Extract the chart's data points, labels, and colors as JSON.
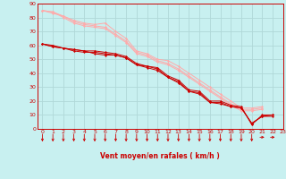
{
  "bg_color": "#c8f0f0",
  "grid_color": "#b0d8d8",
  "line_color_dark": "#cc0000",
  "line_color_light": "#ffaaaa",
  "xlabel": "Vent moyen/en rafales ( km/h )",
  "xlim": [
    -0.5,
    23
  ],
  "ylim": [
    0,
    90
  ],
  "yticks": [
    0,
    10,
    20,
    30,
    40,
    50,
    60,
    70,
    80,
    90
  ],
  "xticks": [
    0,
    1,
    2,
    3,
    4,
    5,
    6,
    7,
    8,
    9,
    10,
    11,
    12,
    13,
    14,
    15,
    16,
    17,
    18,
    19,
    20,
    21,
    22,
    23
  ],
  "series_dark": [
    [
      61,
      60,
      58,
      57,
      56,
      56,
      55,
      54,
      52,
      47,
      45,
      44,
      38,
      35,
      28,
      27,
      20,
      20,
      17,
      16,
      3,
      10,
      10
    ],
    [
      61,
      59,
      58,
      57,
      56,
      54,
      53,
      53,
      51,
      46,
      45,
      43,
      37,
      34,
      27,
      26,
      19,
      19,
      16,
      15,
      4,
      9,
      10
    ],
    [
      61,
      59,
      58,
      56,
      55,
      55,
      54,
      53,
      51,
      46,
      44,
      42,
      37,
      33,
      27,
      25,
      19,
      18,
      16,
      15,
      4,
      9,
      9
    ]
  ],
  "series_light": [
    [
      85,
      83,
      81,
      78,
      76,
      75,
      76,
      70,
      65,
      56,
      54,
      50,
      49,
      45,
      40,
      35,
      30,
      25,
      20,
      15,
      15,
      16
    ],
    [
      85,
      84,
      81,
      77,
      75,
      74,
      73,
      68,
      63,
      55,
      53,
      49,
      47,
      43,
      38,
      33,
      28,
      23,
      18,
      14,
      14,
      15
    ],
    [
      85,
      84,
      80,
      76,
      74,
      73,
      72,
      67,
      62,
      54,
      52,
      48,
      46,
      42,
      37,
      32,
      27,
      22,
      17,
      13,
      13,
      14
    ]
  ]
}
